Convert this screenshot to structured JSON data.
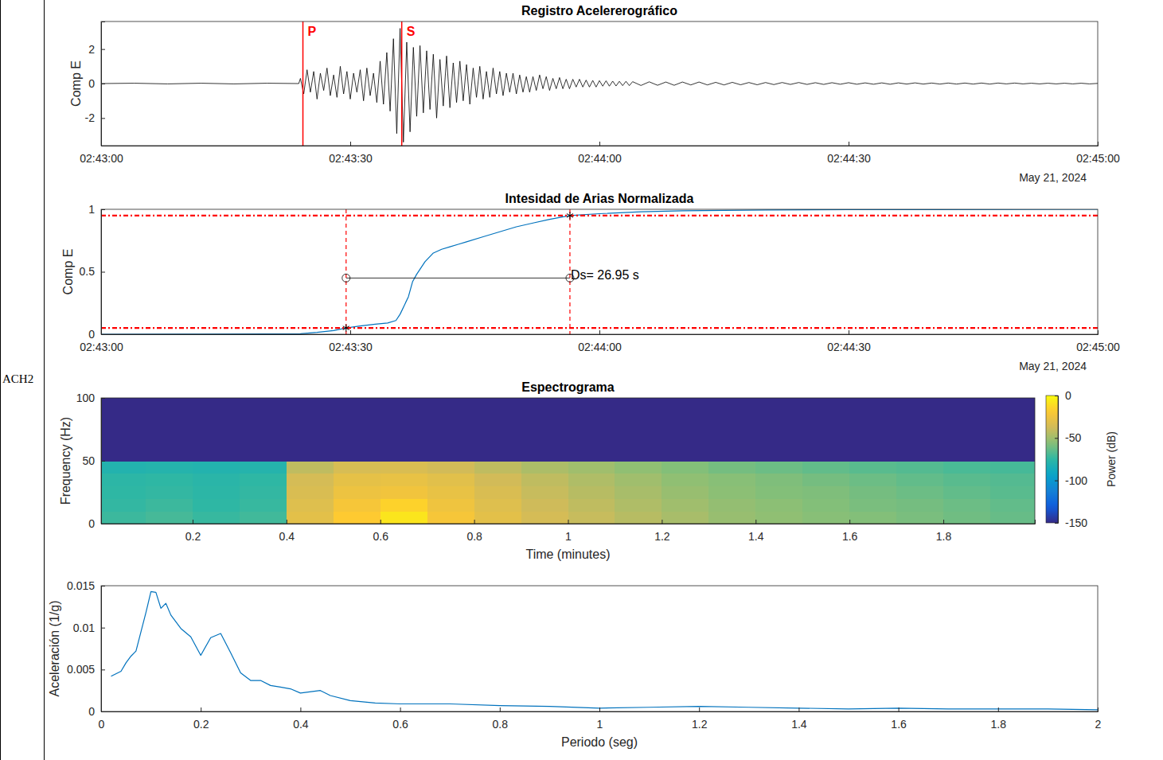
{
  "station": "ACH2",
  "chart_data": [
    {
      "type": "line",
      "title": "Registro Acelererográfico",
      "y_label": "Comp E",
      "date_label": "May 21, 2024",
      "color": "#000000",
      "x": [
        0,
        4,
        8,
        12,
        16,
        20,
        23.8,
        24,
        24.4,
        24.8,
        25.2,
        25.6,
        26,
        26.4,
        26.8,
        27.2,
        27.6,
        28,
        28.4,
        28.8,
        29.2,
        29.6,
        30,
        30.4,
        30.8,
        31.2,
        31.6,
        32,
        32.4,
        32.8,
        33.2,
        33.6,
        34,
        34.4,
        34.8,
        35.2,
        35.6,
        36,
        36.4,
        36.8,
        37.2,
        37.6,
        38,
        38.4,
        38.8,
        39.2,
        39.6,
        40,
        40.4,
        40.8,
        41.2,
        41.6,
        42,
        42.4,
        42.8,
        43.2,
        43.6,
        44,
        44.4,
        44.8,
        45.2,
        45.6,
        46,
        46.4,
        46.8,
        47.2,
        47.6,
        48,
        48.4,
        48.8,
        49.2,
        49.6,
        50,
        50.4,
        50.8,
        51.2,
        51.6,
        52,
        52.4,
        52.8,
        53.2,
        53.6,
        54,
        54.4,
        54.8,
        55.2,
        55.6,
        56,
        56.4,
        56.8,
        57.2,
        57.6,
        58,
        58.4,
        58.8,
        59.2,
        59.6,
        60,
        60.4,
        60.8,
        61.2,
        61.6,
        62,
        62.4,
        62.8,
        63.2,
        63.6,
        64,
        65,
        66,
        67,
        68,
        69,
        70,
        71,
        72,
        73,
        74,
        75,
        76,
        77,
        78,
        79,
        80,
        81,
        82,
        83,
        84,
        85,
        86,
        87,
        88,
        89,
        90,
        91,
        92,
        93,
        94,
        95,
        96,
        97,
        98,
        99,
        100,
        101,
        102,
        103,
        104,
        105,
        106,
        107,
        108,
        109,
        110,
        111,
        112,
        113,
        114,
        115,
        116,
        117,
        118,
        119,
        120
      ],
      "values": [
        0,
        0.02,
        -0.02,
        0.02,
        -0.02,
        0.02,
        0,
        0.3,
        -0.6,
        0.8,
        -0.5,
        0.7,
        -0.9,
        0.6,
        -0.4,
        0.9,
        -0.7,
        0.5,
        -0.8,
        1.0,
        -0.6,
        0.7,
        -0.9,
        0.6,
        -0.5,
        0.8,
        -1.0,
        0.9,
        -0.7,
        0.6,
        -1.1,
        1.3,
        -1.2,
        1.8,
        -1.6,
        2.6,
        -2.9,
        3.2,
        -3.4,
        2.4,
        -2.8,
        2.1,
        -1.9,
        2.2,
        -1.7,
        1.9,
        -1.5,
        1.7,
        -2.0,
        1.4,
        -1.3,
        1.6,
        -1.4,
        1.2,
        -1.1,
        1.3,
        -1.0,
        1.1,
        -1.2,
        0.9,
        -0.8,
        1.0,
        -0.9,
        0.7,
        -0.8,
        0.9,
        -0.6,
        0.7,
        -0.7,
        0.6,
        -0.5,
        0.6,
        -0.6,
        0.5,
        -0.5,
        0.4,
        -0.5,
        0.4,
        -0.4,
        0.5,
        -0.3,
        0.4,
        -0.4,
        0.3,
        -0.3,
        0.35,
        -0.3,
        0.25,
        -0.3,
        0.25,
        -0.2,
        0.25,
        -0.2,
        0.2,
        -0.2,
        0.18,
        -0.2,
        0.17,
        -0.15,
        0.16,
        -0.15,
        0.14,
        -0.14,
        0.13,
        -0.12,
        0.13,
        -0.12,
        0.11,
        -0.11,
        0.1,
        -0.1,
        0.09,
        -0.1,
        0.09,
        -0.08,
        0.09,
        -0.08,
        0.07,
        -0.08,
        0.07,
        -0.07,
        0.06,
        -0.07,
        0.06,
        -0.06,
        0.06,
        -0.05,
        0.06,
        -0.05,
        0.05,
        -0.05,
        0.05,
        -0.04,
        0.05,
        -0.04,
        0.04,
        -0.04,
        0.04,
        -0.04,
        0.04,
        -0.03,
        0.04,
        -0.03,
        0.03,
        -0.03,
        0.03,
        -0.03,
        0.03,
        -0.03,
        0.03,
        -0.03,
        0.03,
        -0.02,
        0.03,
        -0.02,
        0.02,
        -0.02,
        0.02,
        -0.02,
        0.02,
        -0.02,
        0.02,
        -0.02,
        0.01
      ],
      "xlim": [
        0,
        120
      ],
      "xticks": [
        {
          "value": 0,
          "label": "02:43:00"
        },
        {
          "value": 30,
          "label": "02:43:30"
        },
        {
          "value": 60,
          "label": "02:44:00"
        },
        {
          "value": 90,
          "label": "02:44:30"
        },
        {
          "value": 120,
          "label": "02:45:00"
        }
      ],
      "ylim": [
        -3.6,
        3.6
      ],
      "yticks": [
        -2,
        0,
        2
      ],
      "picks": [
        {
          "label": "P",
          "x": 24.3
        },
        {
          "label": "S",
          "x": 36.2
        }
      ]
    },
    {
      "type": "line",
      "title": "Intesidad de Arias Normalizada",
      "y_label": "Comp E",
      "date_label": "May 21, 2024",
      "color": "#0072bd",
      "x": [
        0,
        10,
        20,
        24,
        26,
        28,
        29.5,
        31,
        33,
        34.5,
        35.5,
        36,
        36.5,
        37,
        37.5,
        38,
        39,
        40,
        41,
        42,
        43,
        44,
        46,
        48,
        50,
        52,
        54,
        56.45,
        60,
        65,
        70,
        80,
        90,
        100,
        120
      ],
      "values": [
        0,
        0.001,
        0.002,
        0.004,
        0.015,
        0.03,
        0.05,
        0.065,
        0.08,
        0.09,
        0.11,
        0.16,
        0.23,
        0.3,
        0.42,
        0.48,
        0.58,
        0.65,
        0.68,
        0.7,
        0.72,
        0.74,
        0.78,
        0.82,
        0.86,
        0.89,
        0.92,
        0.95,
        0.965,
        0.98,
        0.988,
        0.994,
        0.997,
        0.998,
        1
      ],
      "xlim": [
        0,
        120
      ],
      "xticks": [
        {
          "value": 0,
          "label": "02:43:00"
        },
        {
          "value": 30,
          "label": "02:43:30"
        },
        {
          "value": 60,
          "label": "02:44:00"
        },
        {
          "value": 90,
          "label": "02:44:30"
        },
        {
          "value": 120,
          "label": "02:45:00"
        }
      ],
      "ylim": [
        0,
        1
      ],
      "yticks": [
        0,
        0.5,
        1
      ],
      "thresholds": [
        0.05,
        0.95
      ],
      "significant_duration": {
        "start": 29.5,
        "end": 56.45,
        "level": 0.45,
        "label": "Ds= 26.95 s"
      }
    },
    {
      "type": "heatmap",
      "title": "Espectrograma",
      "x_label": "Time (minutes)",
      "y_label": "Frequency (Hz)",
      "x_edges": [
        0,
        0.1,
        0.2,
        0.3,
        0.4,
        0.5,
        0.6,
        0.7,
        0.8,
        0.9,
        1,
        1.1,
        1.2,
        1.3,
        1.4,
        1.5,
        1.6,
        1.7,
        1.8,
        1.9,
        2
      ],
      "y_edges": [
        0,
        10,
        20,
        30,
        40,
        50,
        60,
        70,
        80,
        90,
        100
      ],
      "cells": [
        [
          -72,
          -70,
          -73,
          -71,
          -30,
          -18,
          -8,
          -22,
          -30,
          -36,
          -40,
          -44,
          -48,
          -52,
          -54,
          -56,
          -57,
          -59,
          -61,
          -63
        ],
        [
          -74,
          -72,
          -75,
          -73,
          -32,
          -22,
          -15,
          -25,
          -32,
          -38,
          -42,
          -46,
          -50,
          -53,
          -55,
          -57,
          -59,
          -60,
          -62,
          -64
        ],
        [
          -75,
          -74,
          -76,
          -74,
          -34,
          -26,
          -24,
          -28,
          -34,
          -40,
          -44,
          -48,
          -52,
          -55,
          -57,
          -58,
          -60,
          -62,
          -64,
          -66
        ],
        [
          -76,
          -75,
          -77,
          -75,
          -36,
          -29,
          -28,
          -31,
          -37,
          -42,
          -46,
          -50,
          -54,
          -56,
          -58,
          -60,
          -62,
          -64,
          -66,
          -67
        ],
        [
          -80,
          -79,
          -80,
          -79,
          -42,
          -35,
          -34,
          -37,
          -42,
          -47,
          -50,
          -54,
          -57,
          -60,
          -62,
          -64,
          -66,
          -67,
          -69,
          -70
        ],
        [
          -150,
          -150,
          -150,
          -150,
          -150,
          -150,
          -150,
          -150,
          -150,
          -150,
          -150,
          -150,
          -150,
          -150,
          -150,
          -150,
          -150,
          -150,
          -150,
          -150
        ],
        [
          -150,
          -150,
          -150,
          -150,
          -150,
          -150,
          -150,
          -150,
          -150,
          -150,
          -150,
          -150,
          -150,
          -150,
          -150,
          -150,
          -150,
          -150,
          -150,
          -150
        ],
        [
          -150,
          -150,
          -150,
          -150,
          -150,
          -150,
          -150,
          -150,
          -150,
          -150,
          -150,
          -150,
          -150,
          -150,
          -150,
          -150,
          -150,
          -150,
          -150,
          -150
        ],
        [
          -150,
          -150,
          -150,
          -150,
          -150,
          -150,
          -150,
          -150,
          -150,
          -150,
          -150,
          -150,
          -150,
          -150,
          -150,
          -150,
          -150,
          -150,
          -150,
          -150
        ],
        [
          -150,
          -150,
          -150,
          -150,
          -150,
          -150,
          -150,
          -150,
          -150,
          -150,
          -150,
          -150,
          -150,
          -150,
          -150,
          -150,
          -150,
          -150,
          -150,
          -150
        ]
      ],
      "xlim": [
        0.005,
        1.995
      ],
      "xticks": [
        0.2,
        0.4,
        0.6,
        0.8,
        1,
        1.2,
        1.4,
        1.6,
        1.8
      ],
      "ylim": [
        0,
        100
      ],
      "yticks": [
        0,
        50,
        100
      ],
      "colorbar_label": "Power (dB)",
      "colorbar_range": [
        -150,
        0
      ],
      "colorbar_ticks": [
        0,
        -50,
        -100,
        -150
      ]
    },
    {
      "type": "line",
      "x_label": "Periodo (seg)",
      "y_label": "Aceleración (1/g)",
      "color": "#0072bd",
      "x": [
        0.02,
        0.04,
        0.05,
        0.06,
        0.07,
        0.08,
        0.09,
        0.1,
        0.11,
        0.12,
        0.13,
        0.14,
        0.16,
        0.18,
        0.2,
        0.22,
        0.24,
        0.26,
        0.28,
        0.3,
        0.32,
        0.34,
        0.36,
        0.38,
        0.4,
        0.44,
        0.46,
        0.5,
        0.55,
        0.6,
        0.65,
        0.7,
        0.8,
        0.9,
        1,
        1.1,
        1.2,
        1.3,
        1.4,
        1.5,
        1.6,
        1.7,
        1.8,
        1.9,
        2
      ],
      "values": [
        0.0042,
        0.0048,
        0.0058,
        0.0066,
        0.0072,
        0.0095,
        0.0118,
        0.0143,
        0.0142,
        0.0123,
        0.0129,
        0.0115,
        0.0099,
        0.0089,
        0.0067,
        0.0088,
        0.0093,
        0.007,
        0.0046,
        0.0037,
        0.0037,
        0.0031,
        0.0029,
        0.0027,
        0.0022,
        0.0025,
        0.0019,
        0.0013,
        0.001,
        0.0009,
        0.0009,
        0.0009,
        0.0007,
        0.0006,
        0.0004,
        0.0005,
        0.0006,
        0.0005,
        0.0004,
        0.0003,
        0.0004,
        0.0003,
        0.0003,
        0.0003,
        0.0002
      ],
      "xlim": [
        0,
        2
      ],
      "xticks": [
        0,
        0.2,
        0.4,
        0.6,
        0.8,
        1,
        1.2,
        1.4,
        1.6,
        1.8,
        2
      ],
      "ylim": [
        0,
        0.015
      ],
      "yticks": [
        0,
        0.005,
        0.01,
        0.015
      ]
    }
  ]
}
